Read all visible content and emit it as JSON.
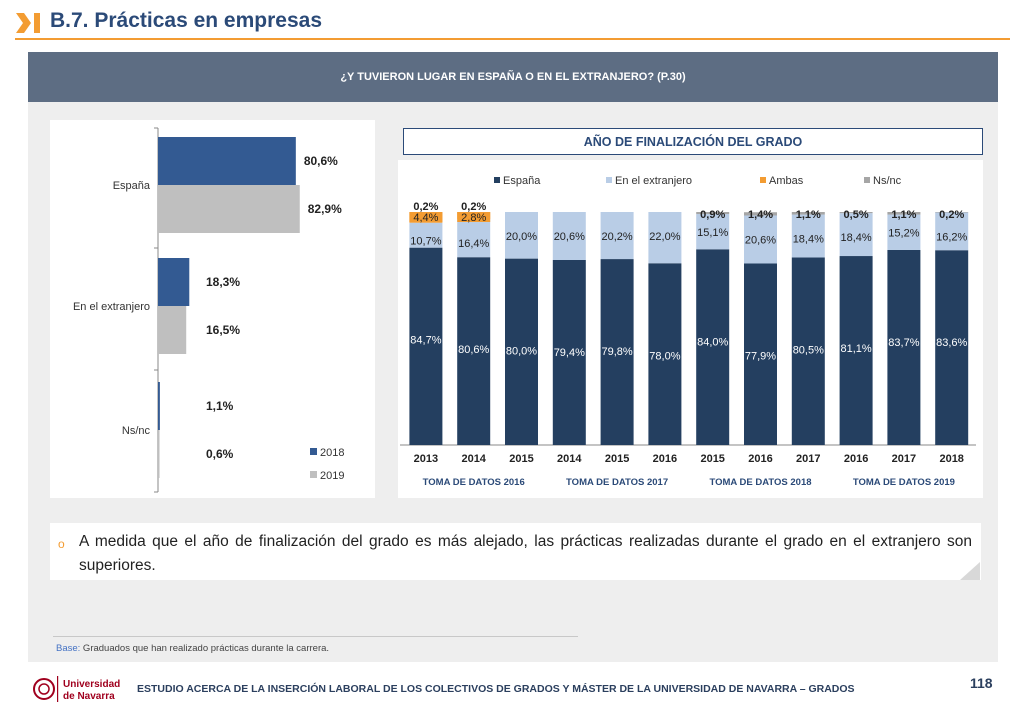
{
  "header": {
    "title": "B.7. Prácticas en empresas"
  },
  "banner": {
    "question": "¿Y TUVIERON LUGAR EN ESPAÑA O EN EL EXTRANJERO? (P.30)"
  },
  "colors": {
    "espana": "#243f60",
    "espana_left": "#335a92",
    "extranjero": "#b9cde6",
    "ambas": "#f39c32",
    "nsnc": "#a6a6a6",
    "gray2019": "#bfbfbf",
    "accent": "#f39c32"
  },
  "chart_data": [
    {
      "type": "bar",
      "orientation": "horizontal",
      "categories": [
        "España",
        "En el extranjero",
        "Ns/nc"
      ],
      "series": [
        {
          "name": "2018",
          "values": [
            80.6,
            18.3,
            1.1
          ],
          "labels": [
            "80,6%",
            "18,3%",
            "1,1%"
          ]
        },
        {
          "name": "2019",
          "values": [
            82.9,
            16.5,
            0.6
          ],
          "labels": [
            "82,9%",
            "16,5%",
            "0,6%"
          ]
        }
      ],
      "xlim": [
        0,
        100
      ],
      "legend": "bottom-right"
    },
    {
      "type": "bar",
      "stacked": true,
      "title": "AÑO DE FINALIZACIÓN DEL GRADO",
      "categories": [
        "2013",
        "2014",
        "2015",
        "2014",
        "2015",
        "2016",
        "2015",
        "2016",
        "2017",
        "2016",
        "2017",
        "2018"
      ],
      "groups": [
        {
          "label": "TOMA DE DATOS 2016",
          "span": 3
        },
        {
          "label": "TOMA DE DATOS 2017",
          "span": 3
        },
        {
          "label": "TOMA DE DATOS 2018",
          "span": 3
        },
        {
          "label": "TOMA DE DATOS 2019",
          "span": 3
        }
      ],
      "series": [
        {
          "name": "España",
          "values": [
            84.7,
            80.6,
            80.0,
            79.4,
            79.8,
            78.0,
            84.0,
            77.9,
            80.5,
            81.1,
            83.7,
            83.6
          ],
          "labels": [
            "84,7%",
            "80,6%",
            "80,0%",
            "79,4%",
            "79,8%",
            "78,0%",
            "84,0%",
            "77,9%",
            "80,5%",
            "81,1%",
            "83,7%",
            "83,6%"
          ]
        },
        {
          "name": "En el extranjero",
          "values": [
            10.7,
            16.4,
            20.0,
            20.6,
            20.2,
            22.0,
            15.1,
            20.6,
            18.4,
            18.4,
            15.2,
            16.2
          ],
          "labels": [
            "10,7%",
            "16,4%",
            "20,0%",
            "20,6%",
            "20,2%",
            "22,0%",
            "15,1%",
            "20,6%",
            "18,4%",
            "18,4%",
            "15,2%",
            "16,2%"
          ]
        },
        {
          "name": "Ambas",
          "values": [
            4.4,
            2.8,
            0,
            0,
            0,
            0,
            0,
            0,
            0,
            0,
            0,
            0
          ],
          "labels": [
            "4,4%",
            "2,8%",
            "",
            "",
            "",
            "",
            "",
            "",
            "",
            "",
            "",
            ""
          ]
        },
        {
          "name": "Ns/nc",
          "values": [
            0.2,
            0.2,
            0,
            0,
            0,
            0,
            0.9,
            1.4,
            1.1,
            0.5,
            1.1,
            0.2
          ],
          "labels": [
            "0,2%",
            "0,2%",
            "",
            "",
            "",
            "",
            "0,9%",
            "1,4%",
            "1,1%",
            "0,5%",
            "1,1%",
            "0,2%"
          ]
        }
      ],
      "ylim": [
        0,
        100
      ],
      "legend": "top"
    }
  ],
  "note": {
    "text": "A medida que el año de finalización del grado es más alejado, las prácticas realizadas durante el grado en el extranjero son superiores."
  },
  "base": {
    "label": "Base:",
    "text": " Graduados que han realizado prácticas durante la carrera."
  },
  "footer": {
    "logo_line1": "Universidad",
    "logo_line2": "de Navarra",
    "text": "ESTUDIO ACERCA DE LA INSERCIÓN LABORAL DE LOS COLECTIVOS DE GRADOS Y MÁSTER DE LA UNIVERSIDAD DE NAVARRA – GRADOS",
    "page": "118"
  }
}
